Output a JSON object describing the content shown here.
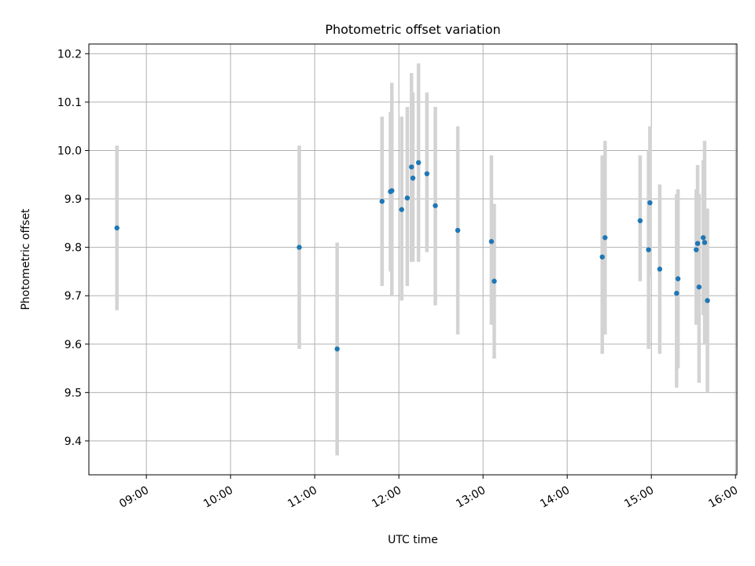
{
  "chart_data": {
    "type": "scatter",
    "title": "Photometric offset variation",
    "xlabel": "UTC time",
    "ylabel": "Photometric offset",
    "xlim": [
      "08:19",
      "16:01"
    ],
    "ylim": [
      9.33,
      10.22
    ],
    "x_ticks": [
      "09:00",
      "10:00",
      "11:00",
      "12:00",
      "13:00",
      "14:00",
      "15:00",
      "16:00"
    ],
    "y_ticks": [
      9.4,
      9.5,
      9.6,
      9.7,
      9.8,
      9.9,
      10.0,
      10.1,
      10.2
    ],
    "grid": true,
    "point_color": "#1f77b4",
    "errorbar_color": "#d3d3d3",
    "points": [
      {
        "x": "08:39",
        "y": 9.84,
        "lo": 9.67,
        "hi": 10.01
      },
      {
        "x": "10:49",
        "y": 9.8,
        "lo": 9.59,
        "hi": 10.01
      },
      {
        "x": "11:16",
        "y": 9.59,
        "lo": 9.37,
        "hi": 9.81
      },
      {
        "x": "11:48",
        "y": 9.895,
        "lo": 9.72,
        "hi": 10.07
      },
      {
        "x": "11:54",
        "y": 9.915,
        "lo": 9.75,
        "hi": 10.08
      },
      {
        "x": "11:55",
        "y": 9.917,
        "lo": 9.7,
        "hi": 10.14
      },
      {
        "x": "12:02",
        "y": 9.878,
        "lo": 9.69,
        "hi": 10.07
      },
      {
        "x": "12:06",
        "y": 9.902,
        "lo": 9.72,
        "hi": 10.09
      },
      {
        "x": "12:09",
        "y": 9.966,
        "lo": 9.77,
        "hi": 10.16
      },
      {
        "x": "12:10",
        "y": 9.943,
        "lo": 9.77,
        "hi": 10.12
      },
      {
        "x": "12:14",
        "y": 9.975,
        "lo": 9.77,
        "hi": 10.18
      },
      {
        "x": "12:20",
        "y": 9.952,
        "lo": 9.79,
        "hi": 10.12
      },
      {
        "x": "12:26",
        "y": 9.886,
        "lo": 9.68,
        "hi": 10.09
      },
      {
        "x": "12:42",
        "y": 9.835,
        "lo": 9.62,
        "hi": 10.05
      },
      {
        "x": "13:06",
        "y": 9.812,
        "lo": 9.64,
        "hi": 9.99
      },
      {
        "x": "13:08",
        "y": 9.73,
        "lo": 9.57,
        "hi": 9.89
      },
      {
        "x": "14:25",
        "y": 9.78,
        "lo": 9.58,
        "hi": 9.99
      },
      {
        "x": "14:27",
        "y": 9.82,
        "lo": 9.62,
        "hi": 10.02
      },
      {
        "x": "14:52",
        "y": 9.855,
        "lo": 9.73,
        "hi": 9.99
      },
      {
        "x": "14:58",
        "y": 9.795,
        "lo": 9.59,
        "hi": 10.0
      },
      {
        "x": "14:59",
        "y": 9.892,
        "lo": 9.74,
        "hi": 10.05
      },
      {
        "x": "15:06",
        "y": 9.755,
        "lo": 9.58,
        "hi": 9.93
      },
      {
        "x": "15:18",
        "y": 9.705,
        "lo": 9.51,
        "hi": 9.91
      },
      {
        "x": "15:19",
        "y": 9.735,
        "lo": 9.55,
        "hi": 9.92
      },
      {
        "x": "15:32",
        "y": 9.795,
        "lo": 9.64,
        "hi": 9.92
      },
      {
        "x": "15:33",
        "y": 9.808,
        "lo": 9.64,
        "hi": 9.97
      },
      {
        "x": "15:34",
        "y": 9.718,
        "lo": 9.52,
        "hi": 9.91
      },
      {
        "x": "15:37",
        "y": 9.82,
        "lo": 9.66,
        "hi": 9.98
      },
      {
        "x": "15:38",
        "y": 9.81,
        "lo": 9.6,
        "hi": 10.02
      },
      {
        "x": "15:40",
        "y": 9.69,
        "lo": 9.5,
        "hi": 9.88
      }
    ]
  }
}
